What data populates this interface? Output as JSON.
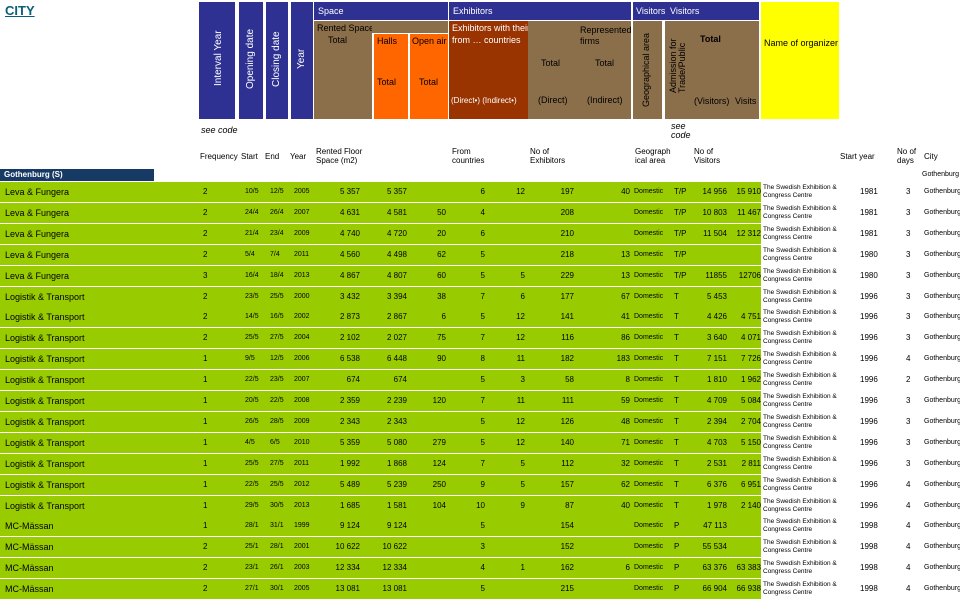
{
  "page": {
    "city_link": "CITY",
    "colors": {
      "blue": "#2e3192",
      "brown": "#8b6e4a",
      "orange": "#ff6600",
      "rust": "#993300",
      "yellow": "#ffff00",
      "green": "#99cc00",
      "navy": "#173a64"
    }
  },
  "header": {
    "interval_year": "Interval Year",
    "opening_date": "Opening date",
    "closing_date": "Closing date",
    "year": "Year",
    "space": "Space",
    "rented_space": "Rented Space (sq.m)",
    "total_a": "Total",
    "halls": "Halls",
    "open_air": "Open air",
    "halls_total": "Total",
    "open_air_total": "Total",
    "exhibitors": "Exhibitors",
    "exhibitors_own": "Exhibitors with their own stands",
    "from_countries": "from … countries",
    "direct_indirect": "(Direct•)  (Indirect•)",
    "represented_firms": "Represented firms",
    "direct_total": "Total",
    "direct": "(Direct)",
    "indirect_total": "Total",
    "indirect": "(Indirect)",
    "visitors_a": "Visitors",
    "visitors_b": "Visitors",
    "geographical_area": "Geographical area",
    "admission": "Admission for Trade/Public",
    "visitors_total": "Total",
    "visitors_paren": "(Visitors)",
    "visits": "Visits",
    "name_of_organizer": "Name of organizer"
  },
  "subheader": {
    "see_code_a": "see code",
    "see_code_b": "see code",
    "frequency": "Frequency",
    "start": "Start",
    "end": "End",
    "year": "Year",
    "rented_floor": "Rented Floor Space (m2)",
    "from_countries": "From countries",
    "no_exhibitors": "No of Exhibitors",
    "geographical_area": "Geograph ical area",
    "no_visitors": "No of Visitors",
    "start_year": "Start year",
    "no_days": "No of days",
    "city": "City"
  },
  "group": {
    "name": "Gothenburg (S)",
    "city": "Gothenburg"
  },
  "rows": [
    {
      "name": "Leva & Fungera",
      "freq": "2",
      "start": "10/5",
      "end": "12/5",
      "year": "2005",
      "total": "5 357",
      "halls": "5 357",
      "open_air": "",
      "countries": "6",
      "direct_from": "12",
      "direct": "197",
      "indirect": "40",
      "geo": "Domestic",
      "adm": "T/P",
      "visitors": "14 956",
      "visits": "15 910",
      "org": "The Swedish Exhibition & Congress Centre",
      "start_year": "1981",
      "days": "3",
      "city": "Gothenburg"
    },
    {
      "name": "Leva & Fungera",
      "freq": "2",
      "start": "24/4",
      "end": "26/4",
      "year": "2007",
      "total": "4 631",
      "halls": "4 581",
      "open_air": "50",
      "countries": "4",
      "direct_from": "",
      "direct": "208",
      "indirect": "",
      "geo": "Domestic",
      "adm": "T/P",
      "visitors": "10 803",
      "visits": "11 467",
      "org": "The Swedish Exhibition & Congress Centre",
      "start_year": "1981",
      "days": "3",
      "city": "Gothenburg"
    },
    {
      "name": "Leva & Fungera",
      "freq": "2",
      "start": "21/4",
      "end": "23/4",
      "year": "2009",
      "total": "4 740",
      "halls": "4 720",
      "open_air": "20",
      "countries": "6",
      "direct_from": "",
      "direct": "210",
      "indirect": "",
      "geo": "Domestic",
      "adm": "T/P",
      "visitors": "11 504",
      "visits": "12 312",
      "org": "The Swedish Exhibition & Congress Centre",
      "start_year": "1981",
      "days": "3",
      "city": "Gothenburg"
    },
    {
      "name": "Leva & Fungera",
      "freq": "2",
      "start": "5/4",
      "end": "7/4",
      "year": "2011",
      "total": "4 560",
      "halls": "4 498",
      "open_air": "62",
      "countries": "5",
      "direct_from": "",
      "direct": "218",
      "indirect": "13",
      "geo": "Domestic",
      "adm": "T/P",
      "visitors": "",
      "visits": "",
      "org": "The Swedish Exhibition & Congress Centre",
      "start_year": "1980",
      "days": "3",
      "city": "Gothenburg"
    },
    {
      "name": "Leva & Fungera",
      "freq": "3",
      "start": "16/4",
      "end": "18/4",
      "year": "2013",
      "total": "4 867",
      "halls": "4 807",
      "open_air": "60",
      "countries": "5",
      "direct_from": "5",
      "direct": "229",
      "indirect": "13",
      "geo": "Domestic",
      "adm": "T/P",
      "visitors": "11855",
      "visits": "12706",
      "org": "The Swedish Exhibition & Congress Centre",
      "start_year": "1980",
      "days": "3",
      "city": "Gothenburg"
    },
    {
      "name": "Logistik & Transport",
      "freq": "2",
      "start": "23/5",
      "end": "25/5",
      "year": "2000",
      "total": "3 432",
      "halls": "3 394",
      "open_air": "38",
      "countries": "7",
      "direct_from": "6",
      "direct": "177",
      "indirect": "67",
      "geo": "Domestic",
      "adm": "T",
      "visitors": "5 453",
      "visits": "",
      "org": "The Swedish Exhibition & Congress Centre",
      "start_year": "1996",
      "days": "3",
      "city": "Gothenburg"
    },
    {
      "name": "Logistik & Transport",
      "freq": "2",
      "start": "14/5",
      "end": "16/5",
      "year": "2002",
      "total": "2 873",
      "halls": "2 867",
      "open_air": "6",
      "countries": "5",
      "direct_from": "12",
      "direct": "141",
      "indirect": "41",
      "geo": "Domestic",
      "adm": "T",
      "visitors": "4 426",
      "visits": "4 751",
      "org": "The Swedish Exhibition & Congress Centre",
      "start_year": "1996",
      "days": "3",
      "city": "Gothenburg"
    },
    {
      "name": "Logistik & Transport",
      "freq": "2",
      "start": "25/5",
      "end": "27/5",
      "year": "2004",
      "total": "2 102",
      "halls": "2 027",
      "open_air": "75",
      "countries": "7",
      "direct_from": "12",
      "direct": "116",
      "indirect": "86",
      "geo": "Domestic",
      "adm": "T",
      "visitors": "3 640",
      "visits": "4 071",
      "org": "The Swedish Exhibition & Congress Centre",
      "start_year": "1996",
      "days": "3",
      "city": "Gothenburg"
    },
    {
      "name": "Logistik & Transport",
      "freq": "1",
      "start": "9/5",
      "end": "12/5",
      "year": "2006",
      "total": "6 538",
      "halls": "6 448",
      "open_air": "90",
      "countries": "8",
      "direct_from": "11",
      "direct": "182",
      "indirect": "183",
      "geo": "Domestic",
      "adm": "T",
      "visitors": "7 151",
      "visits": "7 726",
      "org": "The Swedish Exhibition & Congress Centre",
      "start_year": "1996",
      "days": "4",
      "city": "Gothenburg"
    },
    {
      "name": "Logistik & Transport",
      "freq": "1",
      "start": "22/5",
      "end": "23/5",
      "year": "2007",
      "total": "674",
      "halls": "674",
      "open_air": "",
      "countries": "5",
      "direct_from": "3",
      "direct": "58",
      "indirect": "8",
      "geo": "Domestic",
      "adm": "T",
      "visitors": "1 810",
      "visits": "1 962",
      "org": "The Swedish Exhibition & Congress Centre",
      "start_year": "1996",
      "days": "2",
      "city": "Gothenburg"
    },
    {
      "name": "Logistik & Transport",
      "freq": "1",
      "start": "20/5",
      "end": "22/5",
      "year": "2008",
      "total": "2 359",
      "halls": "2 239",
      "open_air": "120",
      "countries": "7",
      "direct_from": "11",
      "direct": "111",
      "indirect": "59",
      "geo": "Domestic",
      "adm": "T",
      "visitors": "4 709",
      "visits": "5 084",
      "org": "The Swedish Exhibition & Congress Centre",
      "start_year": "1996",
      "days": "3",
      "city": "Gothenburg"
    },
    {
      "name": "Logistik & Transport",
      "freq": "1",
      "start": "26/5",
      "end": "28/5",
      "year": "2009",
      "total": "2 343",
      "halls": "2 343",
      "open_air": "",
      "countries": "5",
      "direct_from": "12",
      "direct": "126",
      "indirect": "48",
      "geo": "Domestic",
      "adm": "T",
      "visitors": "2 394",
      "visits": "2 704",
      "org": "The Swedish Exhibition & Congress Centre",
      "start_year": "1996",
      "days": "3",
      "city": "Gothenburg"
    },
    {
      "name": "Logistik & Transport",
      "freq": "1",
      "start": "4/5",
      "end": "6/5",
      "year": "2010",
      "total": "5 359",
      "halls": "5 080",
      "open_air": "279",
      "countries": "5",
      "direct_from": "12",
      "direct": "140",
      "indirect": "71",
      "geo": "Domestic",
      "adm": "T",
      "visitors": "4 703",
      "visits": "5 150",
      "org": "The Swedish Exhibition & Congress Centre",
      "start_year": "1996",
      "days": "3",
      "city": "Gothenburg"
    },
    {
      "name": "Logistik & Transport",
      "freq": "1",
      "start": "25/5",
      "end": "27/5",
      "year": "2011",
      "total": "1 992",
      "halls": "1 868",
      "open_air": "124",
      "countries": "7",
      "direct_from": "5",
      "direct": "112",
      "indirect": "32",
      "geo": "Domestic",
      "adm": "T",
      "visitors": "2 531",
      "visits": "2 811",
      "org": "The Swedish Exhibition & Congress Centre",
      "start_year": "1996",
      "days": "3",
      "city": "Gothenburg"
    },
    {
      "name": "Logistik & Transport",
      "freq": "1",
      "start": "22/5",
      "end": "25/5",
      "year": "2012",
      "total": "5 489",
      "halls": "5 239",
      "open_air": "250",
      "countries": "9",
      "direct_from": "5",
      "direct": "157",
      "indirect": "62",
      "geo": "Domestic",
      "adm": "T",
      "visitors": "6 376",
      "visits": "6 951",
      "org": "The Swedish Exhibition & Congress Centre",
      "start_year": "1996",
      "days": "4",
      "city": "Gothenburg"
    },
    {
      "name": "Logistik & Transport",
      "freq": "1",
      "start": "29/5",
      "end": "30/5",
      "year": "2013",
      "total": "1 685",
      "halls": "1 581",
      "open_air": "104",
      "countries": "10",
      "direct_from": "9",
      "direct": "87",
      "indirect": "40",
      "geo": "Domestic",
      "adm": "T",
      "visitors": "1 978",
      "visits": "2 140",
      "org": "The Swedish Exhibition & Congress Centre",
      "start_year": "1996",
      "days": "4",
      "city": "Gothenburg"
    },
    {
      "name": "MC-Mässan",
      "freq": "1",
      "start": "28/1",
      "end": "31/1",
      "year": "1999",
      "total": "9 124",
      "halls": "9 124",
      "open_air": "",
      "countries": "5",
      "direct_from": "",
      "direct": "154",
      "indirect": "",
      "geo": "Domestic",
      "adm": "P",
      "visitors": "47 113",
      "visits": "",
      "org": "The Swedish Exhibition & Congress Centre",
      "start_year": "1998",
      "days": "4",
      "city": "Gothenburg"
    },
    {
      "name": "MC-Mässan",
      "freq": "2",
      "start": "25/1",
      "end": "28/1",
      "year": "2001",
      "total": "10 622",
      "halls": "10 622",
      "open_air": "",
      "countries": "3",
      "direct_from": "",
      "direct": "152",
      "indirect": "",
      "geo": "Domestic",
      "adm": "P",
      "visitors": "55 534",
      "visits": "",
      "org": "The Swedish Exhibition & Congress Centre",
      "start_year": "1998",
      "days": "4",
      "city": "Gothenburg"
    },
    {
      "name": "MC-Mässan",
      "freq": "2",
      "start": "23/1",
      "end": "26/1",
      "year": "2003",
      "total": "12 334",
      "halls": "12 334",
      "open_air": "",
      "countries": "4",
      "direct_from": "1",
      "direct": "162",
      "indirect": "6",
      "geo": "Domestic",
      "adm": "P",
      "visitors": "63 376",
      "visits": "63 383",
      "org": "The Swedish Exhibition & Congress Centre",
      "start_year": "1998",
      "days": "4",
      "city": "Gothenburg"
    },
    {
      "name": "MC-Mässan",
      "freq": "2",
      "start": "27/1",
      "end": "30/1",
      "year": "2005",
      "total": "13 081",
      "halls": "13 081",
      "open_air": "",
      "countries": "5",
      "direct_from": "",
      "direct": "215",
      "indirect": "",
      "geo": "Domestic",
      "adm": "P",
      "visitors": "66 904",
      "visits": "66 938",
      "org": "The Swedish Exhibition & Congress Centre",
      "start_year": "1998",
      "days": "4",
      "city": "Gothenburg"
    }
  ]
}
